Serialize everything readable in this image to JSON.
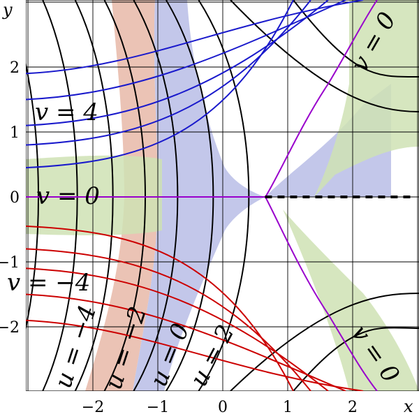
{
  "diagram": {
    "axes": {
      "x_name": "x",
      "y_name": "y",
      "x_ticks": [
        {
          "value": -2,
          "label": "−2"
        },
        {
          "value": -1,
          "label": "−1"
        },
        {
          "value": 0,
          "label": "0"
        },
        {
          "value": 1,
          "label": "1"
        },
        {
          "value": 2,
          "label": "2"
        }
      ],
      "y_ticks": [
        {
          "value": 2,
          "label": "2"
        },
        {
          "value": 1,
          "label": "1"
        },
        {
          "value": 0,
          "label": "0"
        },
        {
          "value": -1,
          "label": "−1"
        },
        {
          "value": -2,
          "label": "−2"
        }
      ],
      "x_range": [
        -3,
        3
      ],
      "y_range": [
        -3,
        3
      ],
      "grid": true
    },
    "labels": {
      "v_pos4": "v = 4",
      "v_zero_left": "v = 0",
      "v_neg4": "v = −4",
      "v_zero_top": "v = 0",
      "v_zero_bottom": "v = 0",
      "u_neg4": "u = −4",
      "u_neg2": "u = −2",
      "u_zero": "u = 0",
      "u_pos2": "u = 2"
    },
    "colors": {
      "u_curve": "#000000",
      "v_positive_curve": "#1a1acc",
      "v_negative_curve": "#cc0000",
      "v_zero_curve": "#9900cc",
      "fill_red": "#e7b8a8",
      "fill_blue": "#b8bde6",
      "fill_green": "#cfe2b4",
      "grid": "#000000"
    }
  }
}
